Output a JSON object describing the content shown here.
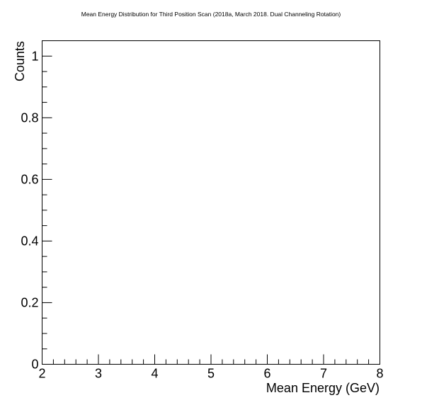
{
  "chart_data": {
    "type": "scatter",
    "title": "Mean Energy Distribution for Third Position Scan (2018a, March 2018. Dual Channeling Rotation)",
    "xlabel": "Mean Energy (GeV)",
    "ylabel": "Counts",
    "xlim": [
      2,
      8
    ],
    "ylim": [
      0,
      1.05
    ],
    "x_ticks": [
      "2",
      "3",
      "4",
      "5",
      "6",
      "7",
      "8"
    ],
    "y_ticks": [
      "0",
      "0.2",
      "0.4",
      "0.6",
      "0.8",
      "1"
    ],
    "x": [],
    "y": [],
    "grid": false,
    "legend": "none"
  }
}
